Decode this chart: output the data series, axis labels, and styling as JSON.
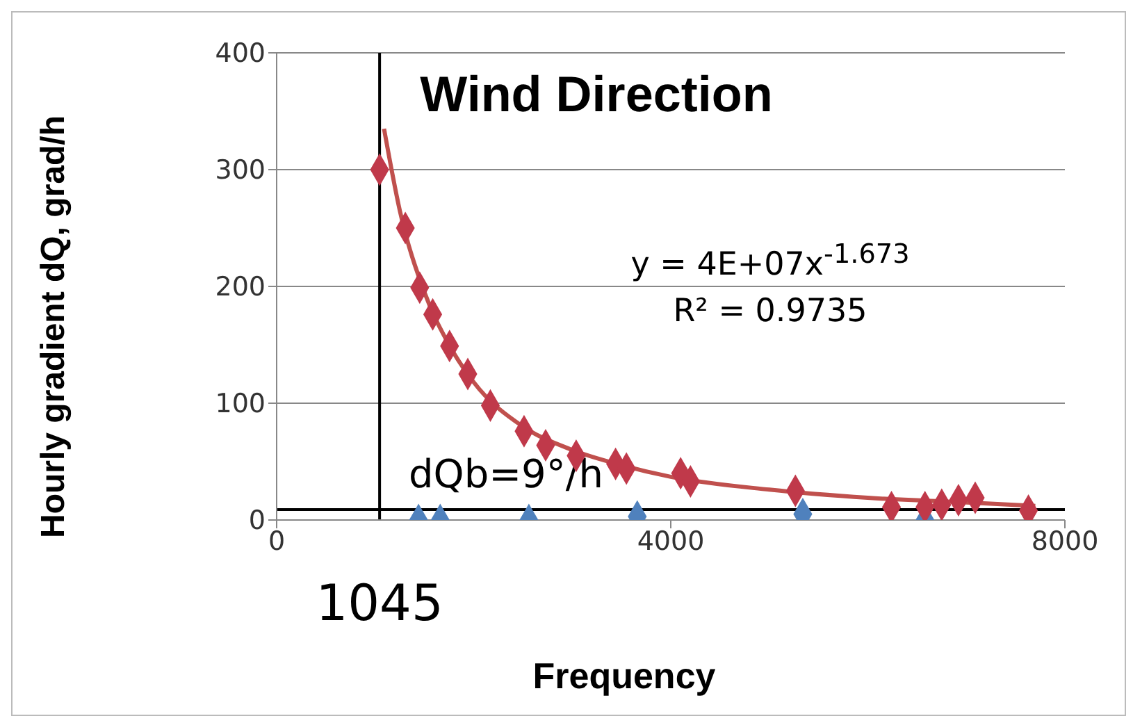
{
  "chart_data": {
    "type": "scatter",
    "title": "Wind Direction",
    "xlabel": "Frequency",
    "ylabel": "Hourly gradient dQ, grad/h",
    "xlim": [
      0,
      8000
    ],
    "xticks": [
      0,
      4000,
      8000
    ],
    "ylim": [
      0,
      400
    ],
    "yticks": [
      0,
      100,
      200,
      300,
      400
    ],
    "grid": "y",
    "series": [
      {
        "marker": "diamond",
        "color": "#4f81bd",
        "x": [
          1440,
          1660,
          2560,
          3660,
          5340,
          6580
        ],
        "values": [
          0,
          0,
          0,
          3,
          5,
          0
        ]
      },
      {
        "marker": "diamond",
        "color": "#c0394a",
        "x": [
          1045,
          1306,
          1452,
          1584,
          1755,
          1940,
          2169,
          2511,
          2730,
          3040,
          3440,
          3550,
          4100,
          4200,
          5265,
          6240,
          6580,
          6750,
          6920,
          7090,
          7630
        ],
        "values": [
          300,
          250,
          199,
          176,
          149,
          125,
          98,
          76,
          64,
          55,
          48,
          44,
          40,
          33,
          25,
          11,
          11,
          13,
          17,
          19,
          8
        ]
      },
      {
        "type": "line",
        "color": "#c0504d",
        "x": [
          1090,
          1250,
          1500,
          1750,
          2000,
          2500,
          3000,
          3500,
          4000,
          5000,
          6000,
          7000,
          7700
        ],
        "values": [
          335,
          265,
          195,
          150,
          118,
          80,
          60,
          47,
          37,
          26,
          19,
          15,
          12
        ]
      }
    ],
    "ref_lines": [
      {
        "axis": "x",
        "value": 1045,
        "label": "1045",
        "color": "#000000"
      },
      {
        "axis": "y",
        "value": 9,
        "label": "dQb=9°/h",
        "color": "#000000"
      }
    ],
    "annotations": [
      "y = 4E+07x$^{-1.673}$",
      "R² = 0.9735"
    ]
  }
}
